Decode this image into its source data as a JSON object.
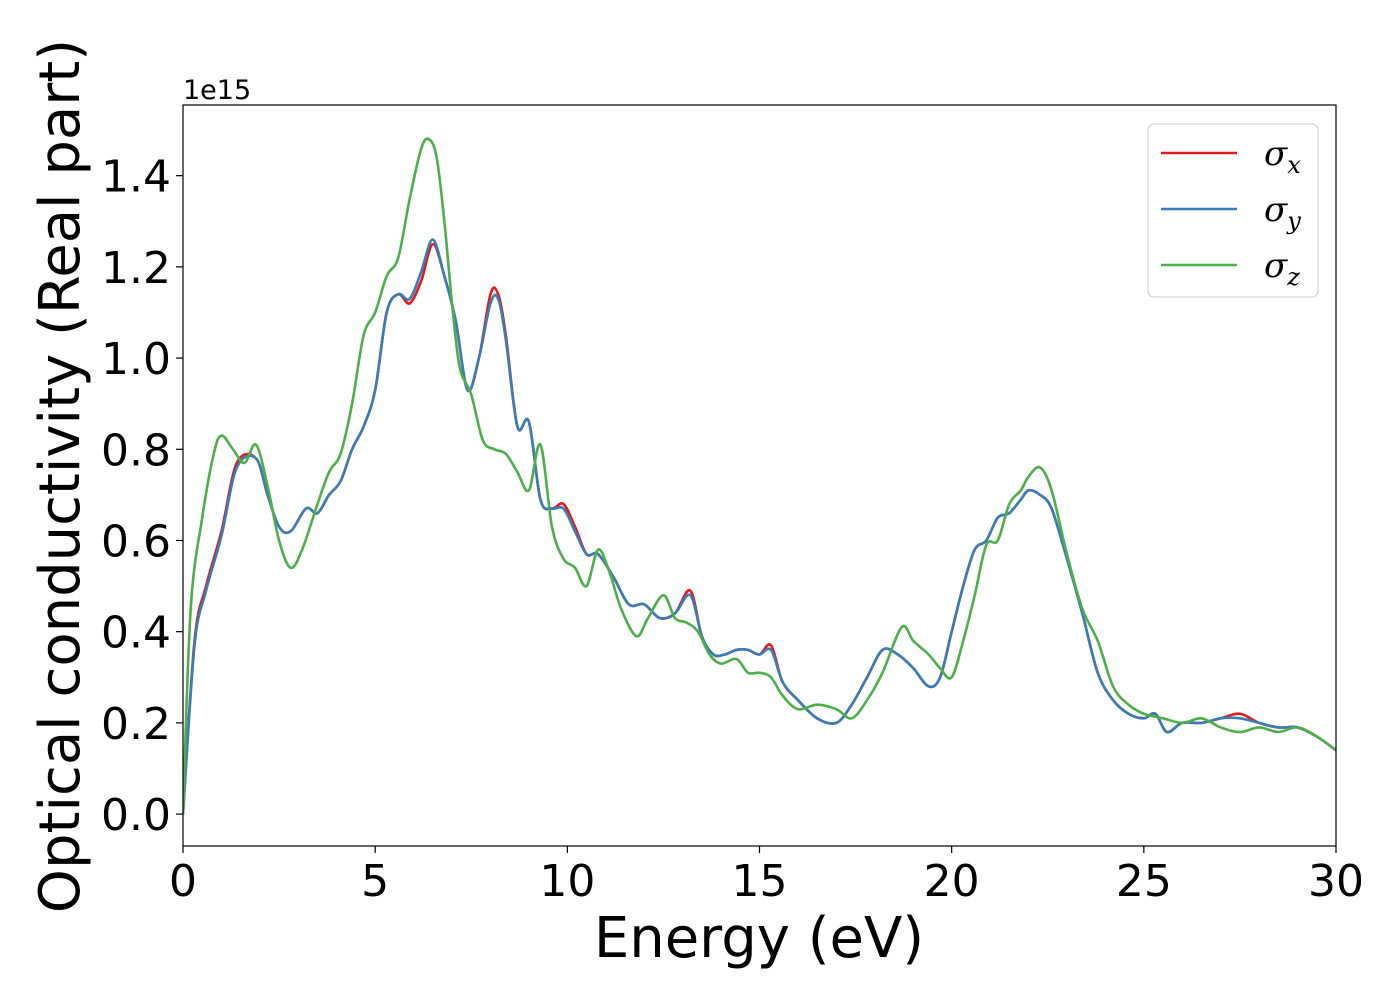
{
  "chart_data": {
    "type": "line",
    "xlabel": "Energy (eV)",
    "ylabel": "Optical conductivity (Real part)",
    "y_offset_label": "1e15",
    "xlim": [
      0,
      30
    ],
    "ylim": [
      -0.07,
      1.555
    ],
    "xticks": [
      0,
      5,
      10,
      15,
      20,
      25,
      30
    ],
    "xtick_labels": [
      "0",
      "5",
      "10",
      "15",
      "20",
      "25",
      "30"
    ],
    "yticks": [
      0.0,
      0.2,
      0.4,
      0.6,
      0.8,
      1.0,
      1.2,
      1.4
    ],
    "ytick_labels": [
      "0.0",
      "0.2",
      "0.4",
      "0.6",
      "0.8",
      "1.0",
      "1.2",
      "1.4"
    ],
    "legend_position": "top-right",
    "grid": false,
    "series": [
      {
        "name": "σx",
        "symbol": "σ",
        "subscript": "x",
        "color": "#e41a1c",
        "x": [
          0,
          0.3,
          0.6,
          1.0,
          1.4,
          1.9,
          2.2,
          2.5,
          2.8,
          3.2,
          3.5,
          3.8,
          4.1,
          4.4,
          4.7,
          5.0,
          5.3,
          5.6,
          5.9,
          6.2,
          6.5,
          6.8,
          7.1,
          7.4,
          7.7,
          8.0,
          8.2,
          8.4,
          8.7,
          9.0,
          9.3,
          9.6,
          9.9,
          10.2,
          10.5,
          10.8,
          11.2,
          11.6,
          12.0,
          12.4,
          12.8,
          13.2,
          13.5,
          13.8,
          14.1,
          14.4,
          14.7,
          15.0,
          15.3,
          15.6,
          16.0,
          16.5,
          17.0,
          17.4,
          17.8,
          18.2,
          18.6,
          19.0,
          19.4,
          19.7,
          20.0,
          20.3,
          20.6,
          20.9,
          21.2,
          21.5,
          21.8,
          22.0,
          22.3,
          22.6,
          23.0,
          23.4,
          23.8,
          24.2,
          24.6,
          25.0,
          25.3,
          25.6,
          26.0,
          26.5,
          27.0,
          27.5,
          28.0,
          28.5,
          29.0,
          29.5,
          30.0
        ],
        "values": [
          0.0,
          0.38,
          0.5,
          0.62,
          0.77,
          0.78,
          0.7,
          0.63,
          0.62,
          0.67,
          0.66,
          0.7,
          0.73,
          0.8,
          0.85,
          0.93,
          1.1,
          1.14,
          1.12,
          1.17,
          1.25,
          1.18,
          1.08,
          0.93,
          1.0,
          1.14,
          1.14,
          1.05,
          0.85,
          0.86,
          0.69,
          0.67,
          0.68,
          0.63,
          0.57,
          0.57,
          0.52,
          0.46,
          0.46,
          0.43,
          0.44,
          0.49,
          0.39,
          0.35,
          0.35,
          0.36,
          0.36,
          0.35,
          0.37,
          0.29,
          0.25,
          0.21,
          0.2,
          0.24,
          0.3,
          0.36,
          0.35,
          0.32,
          0.28,
          0.3,
          0.4,
          0.5,
          0.58,
          0.6,
          0.65,
          0.66,
          0.69,
          0.71,
          0.7,
          0.67,
          0.56,
          0.44,
          0.31,
          0.25,
          0.22,
          0.21,
          0.22,
          0.18,
          0.2,
          0.2,
          0.21,
          0.22,
          0.2,
          0.19,
          0.19,
          0.17,
          0.14
        ]
      },
      {
        "name": "σy",
        "symbol": "σ",
        "subscript": "y",
        "color": "#377eb8",
        "x": [
          0,
          0.3,
          0.6,
          1.0,
          1.4,
          1.9,
          2.2,
          2.5,
          2.8,
          3.2,
          3.5,
          3.8,
          4.1,
          4.4,
          4.7,
          5.0,
          5.3,
          5.6,
          5.9,
          6.2,
          6.5,
          6.8,
          7.1,
          7.4,
          7.7,
          8.0,
          8.2,
          8.4,
          8.7,
          9.0,
          9.3,
          9.6,
          9.9,
          10.2,
          10.5,
          10.8,
          11.2,
          11.6,
          12.0,
          12.4,
          12.8,
          13.2,
          13.5,
          13.8,
          14.1,
          14.4,
          14.7,
          15.0,
          15.3,
          15.6,
          16.0,
          16.5,
          17.0,
          17.4,
          17.8,
          18.2,
          18.6,
          19.0,
          19.4,
          19.7,
          20.0,
          20.3,
          20.6,
          20.9,
          21.2,
          21.5,
          21.8,
          22.0,
          22.3,
          22.6,
          23.0,
          23.4,
          23.8,
          24.2,
          24.6,
          25.0,
          25.3,
          25.6,
          26.0,
          26.5,
          27.0,
          27.5,
          28.0,
          28.5,
          29.0,
          29.5,
          30.0
        ],
        "values": [
          0.0,
          0.37,
          0.49,
          0.61,
          0.76,
          0.78,
          0.7,
          0.63,
          0.62,
          0.67,
          0.66,
          0.7,
          0.73,
          0.8,
          0.85,
          0.93,
          1.1,
          1.14,
          1.13,
          1.19,
          1.26,
          1.18,
          1.08,
          0.93,
          1.0,
          1.12,
          1.13,
          1.04,
          0.85,
          0.86,
          0.69,
          0.67,
          0.67,
          0.62,
          0.57,
          0.57,
          0.52,
          0.46,
          0.46,
          0.43,
          0.44,
          0.48,
          0.39,
          0.35,
          0.35,
          0.36,
          0.36,
          0.35,
          0.36,
          0.29,
          0.25,
          0.21,
          0.2,
          0.24,
          0.3,
          0.36,
          0.35,
          0.32,
          0.28,
          0.3,
          0.4,
          0.5,
          0.58,
          0.6,
          0.65,
          0.66,
          0.69,
          0.71,
          0.7,
          0.67,
          0.56,
          0.44,
          0.31,
          0.25,
          0.22,
          0.21,
          0.22,
          0.18,
          0.2,
          0.2,
          0.21,
          0.21,
          0.2,
          0.19,
          0.19,
          0.17,
          0.14
        ]
      },
      {
        "name": "σz",
        "symbol": "σ",
        "subscript": "z",
        "color": "#4daf4a",
        "x": [
          0,
          0.2,
          0.5,
          0.8,
          1.0,
          1.3,
          1.6,
          1.9,
          2.2,
          2.5,
          2.8,
          3.1,
          3.5,
          3.8,
          4.1,
          4.4,
          4.7,
          5.0,
          5.3,
          5.6,
          5.9,
          6.2,
          6.4,
          6.6,
          6.8,
          7.0,
          7.2,
          7.5,
          7.8,
          8.1,
          8.4,
          8.7,
          9.0,
          9.3,
          9.6,
          9.9,
          10.2,
          10.5,
          10.8,
          11.1,
          11.4,
          11.8,
          12.1,
          12.5,
          12.8,
          13.1,
          13.4,
          13.7,
          14.0,
          14.4,
          14.7,
          15.0,
          15.3,
          15.6,
          16.0,
          16.5,
          17.0,
          17.4,
          17.8,
          18.2,
          18.7,
          19.0,
          19.4,
          19.7,
          20.0,
          20.3,
          20.6,
          20.9,
          21.2,
          21.5,
          21.8,
          22.0,
          22.3,
          22.6,
          23.0,
          23.4,
          23.8,
          24.2,
          24.6,
          25.0,
          25.5,
          26.0,
          26.5,
          27.0,
          27.5,
          28.0,
          28.5,
          29.0,
          29.5,
          30.0
        ],
        "values": [
          0.0,
          0.45,
          0.65,
          0.79,
          0.83,
          0.8,
          0.77,
          0.81,
          0.72,
          0.6,
          0.54,
          0.58,
          0.68,
          0.75,
          0.79,
          0.9,
          1.05,
          1.1,
          1.18,
          1.22,
          1.35,
          1.46,
          1.48,
          1.44,
          1.3,
          1.12,
          0.98,
          0.92,
          0.82,
          0.8,
          0.79,
          0.75,
          0.71,
          0.81,
          0.63,
          0.56,
          0.54,
          0.5,
          0.58,
          0.53,
          0.45,
          0.39,
          0.43,
          0.48,
          0.43,
          0.42,
          0.4,
          0.35,
          0.33,
          0.34,
          0.31,
          0.31,
          0.3,
          0.26,
          0.23,
          0.24,
          0.23,
          0.21,
          0.25,
          0.31,
          0.41,
          0.38,
          0.35,
          0.32,
          0.3,
          0.38,
          0.48,
          0.59,
          0.6,
          0.68,
          0.71,
          0.74,
          0.76,
          0.71,
          0.57,
          0.45,
          0.38,
          0.28,
          0.24,
          0.22,
          0.21,
          0.2,
          0.21,
          0.19,
          0.18,
          0.19,
          0.18,
          0.19,
          0.17,
          0.14
        ]
      }
    ]
  }
}
